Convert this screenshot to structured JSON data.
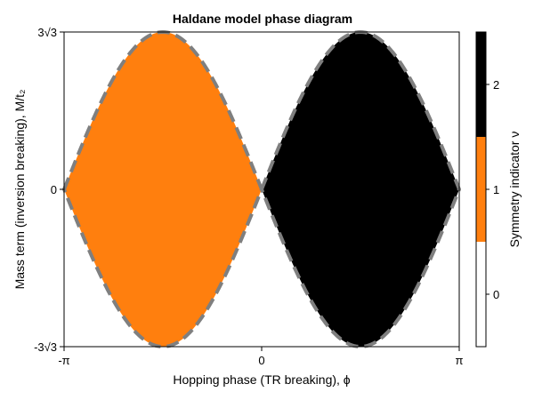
{
  "chart_data": {
    "type": "heatmap",
    "title": "Haldane model phase diagram",
    "xlabel": "Hopping phase (TR breaking), ϕ",
    "ylabel": "Mass term (inversion breaking), M/t₂",
    "xlim": [
      -3.14159,
      3.14159
    ],
    "ylim": [
      -5.19615,
      5.19615
    ],
    "x_ticks": [
      {
        "value": -3.14159,
        "label": "-π"
      },
      {
        "value": 0,
        "label": "0"
      },
      {
        "value": 3.14159,
        "label": "π"
      }
    ],
    "y_ticks": [
      {
        "value": -5.19615,
        "label": "-3√3"
      },
      {
        "value": 0,
        "label": "0"
      },
      {
        "value": 5.19615,
        "label": "3√3"
      }
    ],
    "grid": false,
    "phases": [
      {
        "nu": 0,
        "region": "outside lobes",
        "color": "#ffffff"
      },
      {
        "nu": 1,
        "region": "-π < ϕ < 0, |M/t₂| < 3√3|sin ϕ|",
        "color": "#ff7f0e"
      },
      {
        "nu": 2,
        "region": "0 < ϕ < π, |M/t₂| < 3√3|sin ϕ|",
        "color": "#000000"
      }
    ],
    "boundary": {
      "formula": "M/t₂ = ±3√3 sin ϕ",
      "color": "#7f7f7f",
      "style": "dashed"
    },
    "colorbar": {
      "label": "Symmetry indicator ν",
      "range": [
        -0.5,
        2.5
      ],
      "ticks": [
        {
          "value": 0,
          "label": "0"
        },
        {
          "value": 1,
          "label": "1"
        },
        {
          "value": 2,
          "label": "2"
        }
      ]
    }
  }
}
